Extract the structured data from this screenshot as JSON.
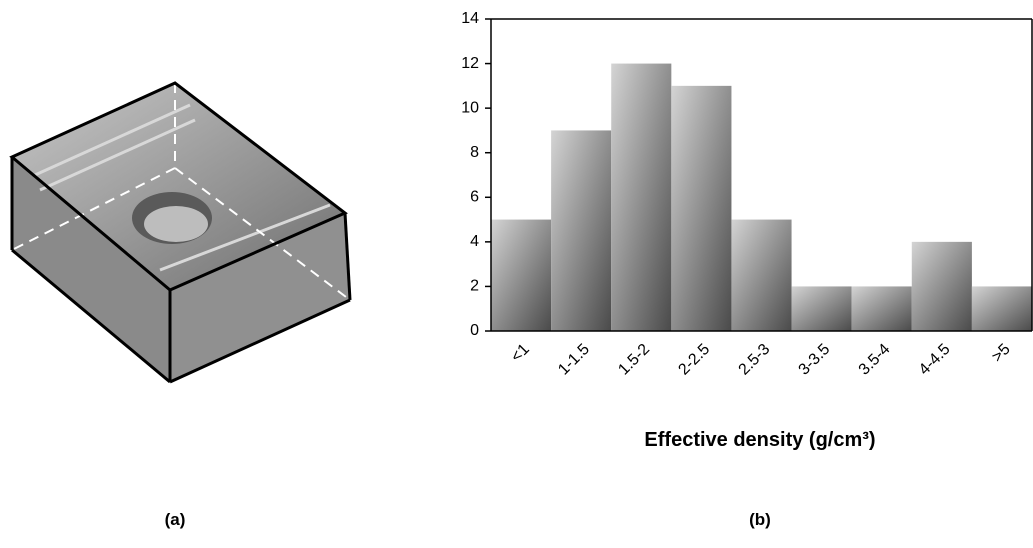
{
  "chart_data": {
    "type": "bar",
    "categories": [
      "<1",
      "1-1.5",
      "1.5-2",
      "2-2.5",
      "2.5-3",
      "3-3.5",
      "3.5-4",
      "4-4.5",
      ">5"
    ],
    "values": [
      5,
      9,
      12,
      11,
      5,
      2,
      2,
      4,
      2
    ],
    "x_label": "Effective density (g/cm³)",
    "ylim": [
      0,
      14
    ],
    "yticks": [
      0,
      2,
      4,
      6,
      8,
      10,
      12,
      14
    ]
  },
  "captions": [
    "(a)",
    "(b)"
  ]
}
